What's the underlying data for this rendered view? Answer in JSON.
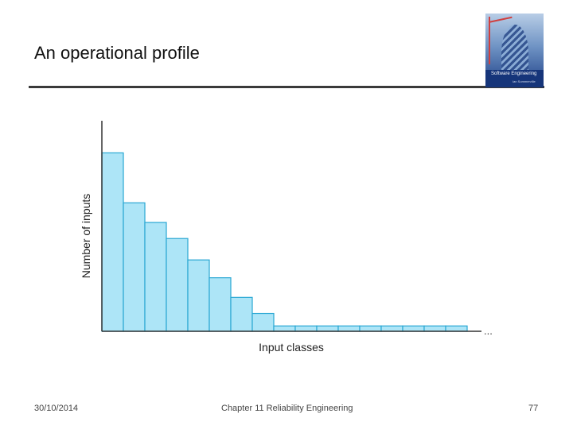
{
  "slide": {
    "title": "An operational profile"
  },
  "footer": {
    "date": "30/10/2014",
    "center": "Chapter 11 Reliability Engineering",
    "page": "77"
  },
  "colors": {
    "bar_fill": "#ade5f7",
    "bar_stroke": "#29a7d3",
    "axis": "#333333",
    "rule": "#3a3a3a"
  },
  "chart_data": {
    "type": "bar",
    "title": "",
    "xlabel": "Input classes",
    "ylabel": "Number of inputs",
    "axis_continuation": "...",
    "categories": [
      "",
      "",
      "",
      "",
      "",
      "",
      "",
      "",
      "",
      "",
      "",
      "",
      "",
      "",
      "",
      "",
      ""
    ],
    "values": [
      100,
      72,
      61,
      52,
      40,
      30,
      19,
      10,
      3,
      3,
      3,
      3,
      3,
      3,
      3,
      3,
      3
    ],
    "ylim": [
      0,
      118
    ],
    "grid": false,
    "legend": "none"
  }
}
